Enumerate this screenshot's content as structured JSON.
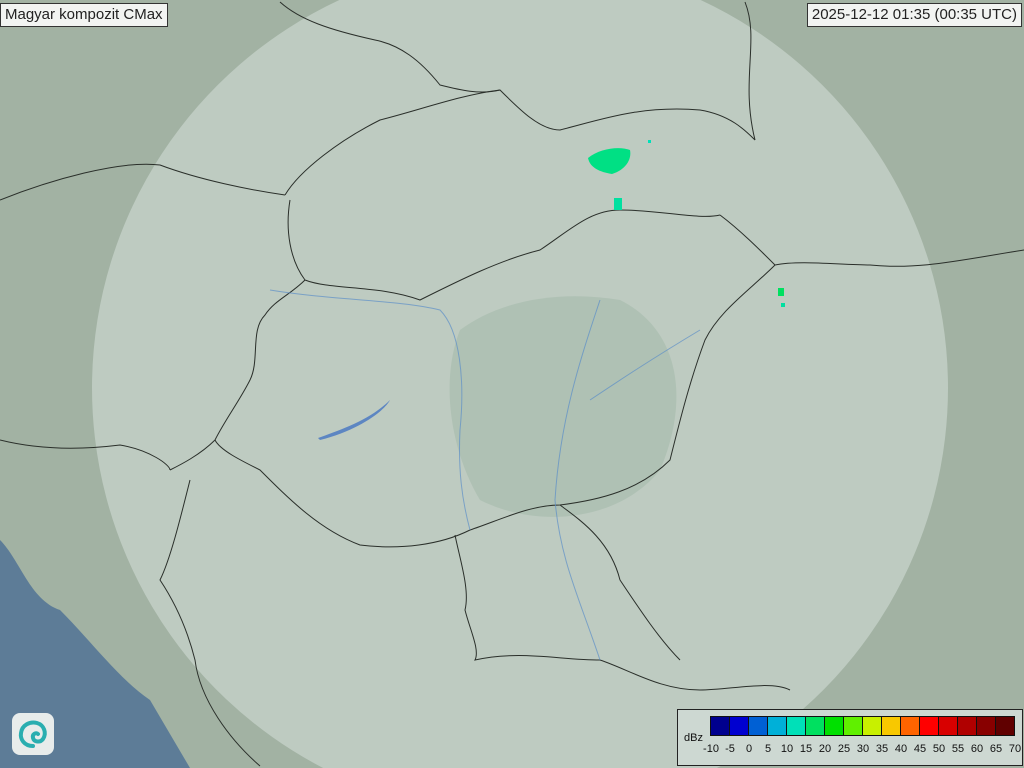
{
  "title": "Magyar kompozit  CMax",
  "timestamp": "2025-12-12 01:35 (00:35 UTC)",
  "legend": {
    "unit": "dBz",
    "ticks": [
      "-10",
      "-5",
      "0",
      "5",
      "10",
      "15",
      "20",
      "25",
      "30",
      "35",
      "40",
      "45",
      "50",
      "55",
      "60",
      "65",
      "70"
    ],
    "colors": [
      "#00008e",
      "#0000d0",
      "#0060d4",
      "#00b0d8",
      "#00e0b8",
      "#00e060",
      "#00e000",
      "#60f000",
      "#c8f000",
      "#f8c800",
      "#ff6400",
      "#ff0000",
      "#d80000",
      "#b00000",
      "#880000",
      "#600000"
    ]
  },
  "logo": "omsz-swirl-logo-icon",
  "colors": {
    "land": "#9fb09f",
    "coverage": "#c6d2cb",
    "sea": "#5a7a96",
    "echo": "#00e090"
  }
}
